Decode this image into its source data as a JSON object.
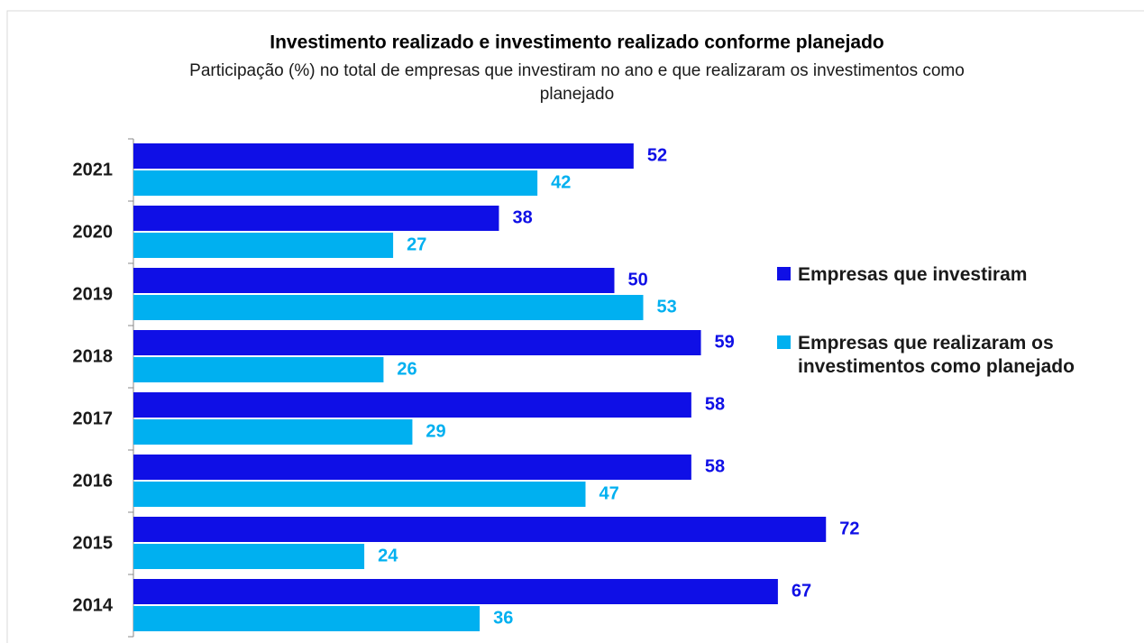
{
  "chart_data": {
    "type": "bar",
    "orientation": "horizontal",
    "title": "Investimento realizado e investimento realizado conforme planejado",
    "subtitle": "Participação (%) no total de empresas que investiram no ano e que realizaram os investimentos como planejado",
    "categories": [
      "2021",
      "2020",
      "2019",
      "2018",
      "2017",
      "2016",
      "2015",
      "2014"
    ],
    "series": [
      {
        "name": "Empresas que investiram",
        "color": "#0f0fe6",
        "values": [
          52,
          38,
          50,
          59,
          58,
          58,
          72,
          67
        ]
      },
      {
        "name": "Empresas que realizaram os investimentos como planejado",
        "color": "#00b0f0",
        "values": [
          42,
          27,
          53,
          26,
          29,
          47,
          24,
          36
        ]
      }
    ],
    "legend": "right"
  }
}
